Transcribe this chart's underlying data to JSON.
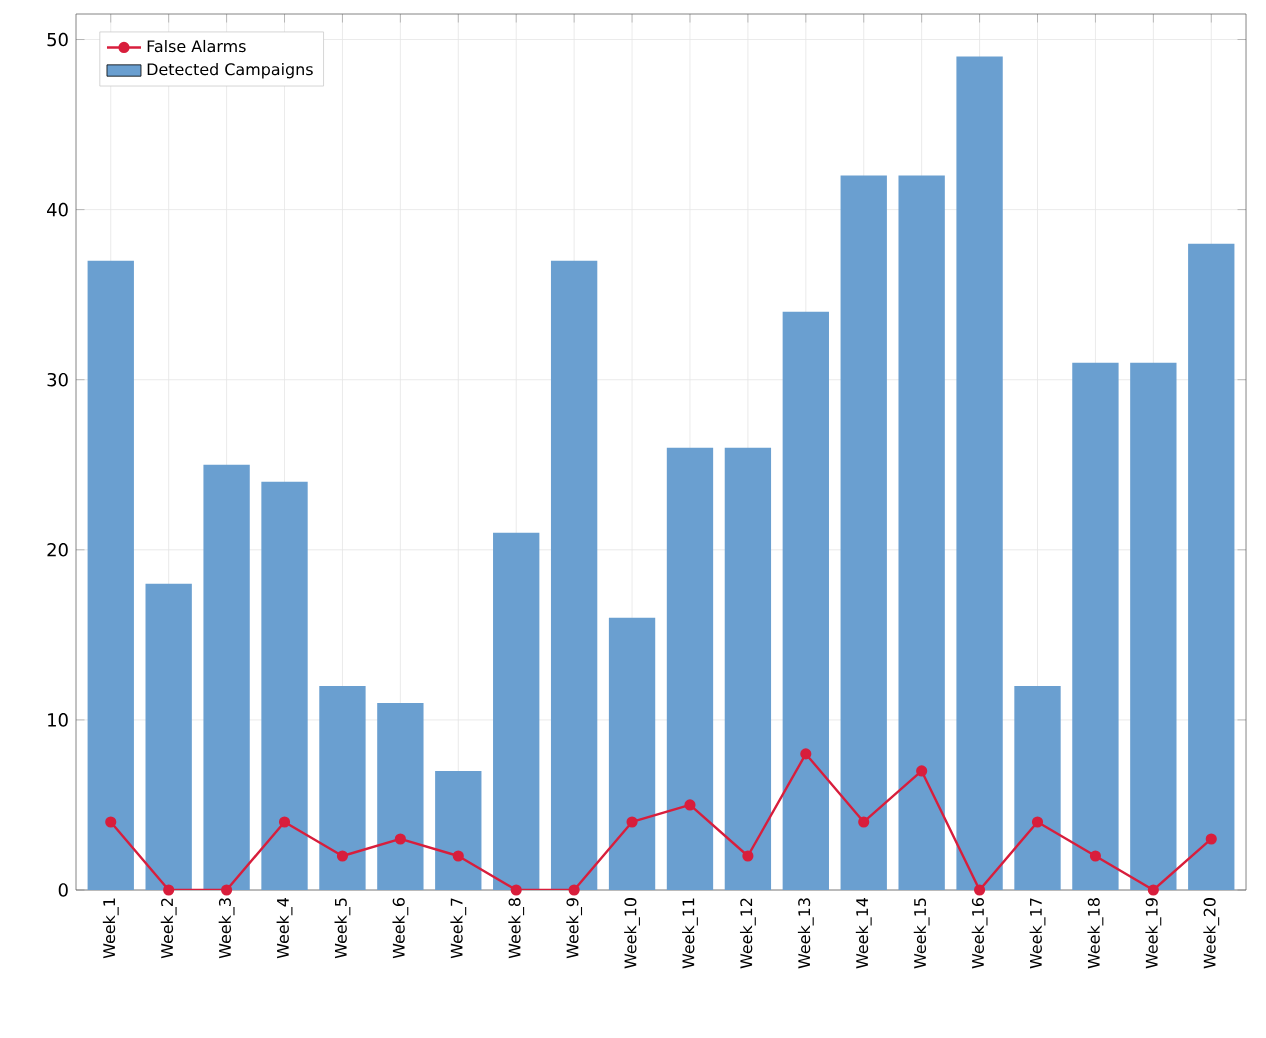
{
  "chart_data": {
    "type": "bar",
    "categories": [
      "Week_1",
      "Week_2",
      "Week_3",
      "Week_4",
      "Week_5",
      "Week_6",
      "Week_7",
      "Week_8",
      "Week_9",
      "Week_10",
      "Week_11",
      "Week_12",
      "Week_13",
      "Week_14",
      "Week_15",
      "Week_16",
      "Week_17",
      "Week_18",
      "Week_19",
      "Week_20"
    ],
    "series": [
      {
        "name": "False Alarms",
        "type": "line",
        "color": "#d81e3c",
        "values": [
          4,
          0,
          0,
          4,
          2,
          3,
          2,
          0,
          0,
          4,
          5,
          2,
          8,
          4,
          7,
          0,
          4,
          2,
          0,
          3
        ]
      },
      {
        "name": "Detected Campaigns",
        "color": "#6a9fd0",
        "values": [
          37,
          18,
          25,
          24,
          12,
          11,
          7,
          21,
          37,
          16,
          26,
          26,
          34,
          42,
          42,
          49,
          12,
          31,
          31,
          38
        ]
      }
    ],
    "ylim": [
      0,
      51.5
    ],
    "yticks": [
      0,
      10,
      20,
      30,
      40,
      50
    ],
    "grid": true,
    "legend": "top left",
    "marker": "circle"
  }
}
